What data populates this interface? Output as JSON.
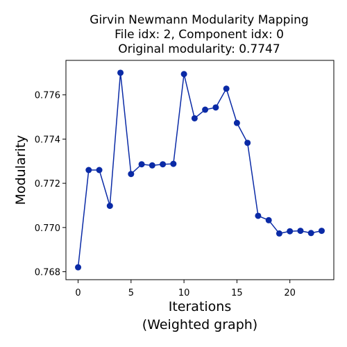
{
  "chart_data": {
    "type": "line",
    "title_lines": [
      "Girvin Newmann Modularity Mapping",
      "File idx: 2, Component idx: 0",
      "Original modularity: 0.7747"
    ],
    "xlabel_lines": [
      "Iterations",
      "(Weighted graph)"
    ],
    "ylabel": "Modularity",
    "xlim": [
      -1.15,
      24.15
    ],
    "ylim": [
      0.76764,
      0.77756
    ],
    "x_ticks": [
      0,
      5,
      10,
      15,
      20
    ],
    "x_tick_labels": [
      "0",
      "5",
      "10",
      "15",
      "20"
    ],
    "y_ticks": [
      0.768,
      0.77,
      0.772,
      0.774,
      0.776
    ],
    "y_tick_labels": [
      "0.768",
      "0.770",
      "0.772",
      "0.774",
      "0.776"
    ],
    "grid": false,
    "series": [
      {
        "color": "#0a2aa6",
        "x": [
          0,
          1,
          2,
          3,
          4,
          5,
          6,
          7,
          8,
          9,
          10,
          11,
          12,
          13,
          14,
          15,
          16,
          17,
          18,
          19,
          20,
          21,
          22,
          23
        ],
        "y": [
          0.7682,
          0.7726,
          0.7726,
          0.77098,
          0.777,
          0.77242,
          0.77286,
          0.77281,
          0.77286,
          0.77288,
          0.77694,
          0.77494,
          0.77533,
          0.77543,
          0.77628,
          0.77473,
          0.77383,
          0.77053,
          0.77033,
          0.76973,
          0.76983,
          0.76985,
          0.76975,
          0.76985
        ]
      }
    ]
  }
}
